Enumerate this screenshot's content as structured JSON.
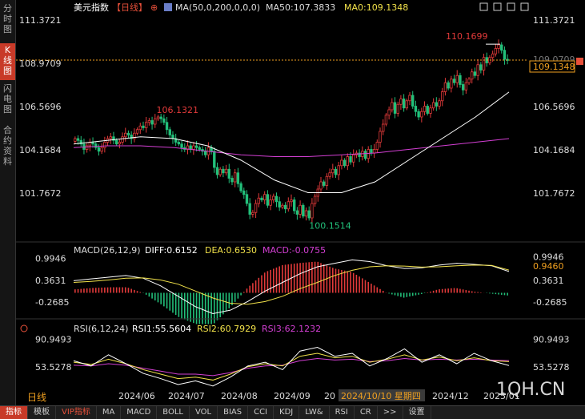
{
  "sidebar": [
    {
      "label": "分时图",
      "active": false
    },
    {
      "label": "K线图",
      "active": true
    },
    {
      "label": "闪电图",
      "active": false
    },
    {
      "label": "合约资料",
      "active": false
    }
  ],
  "header": {
    "title": "美元指数",
    "period": "【日线】",
    "add_symbol": "⊕",
    "ma_label": "MA(50,0,200,0,0,0)",
    "ma50_label": "MA50:107.3833",
    "ma0_label": "MA0:109.1348"
  },
  "window_icons": [
    "minimize-icon",
    "restore-icon",
    "maximize-icon",
    "close-icon"
  ],
  "price_panel": {
    "y_ticks": [
      "111.3721",
      "108.9709",
      "106.5696",
      "104.1684",
      "101.7672"
    ],
    "tick_values": [
      111.3721,
      108.9709,
      106.5696,
      104.1684,
      101.7672
    ],
    "current_price": "109.1348",
    "current_value": 109.1348,
    "right_label_partial": "109.0709",
    "high_label": "110.1699",
    "mid_high_label": "106.1321",
    "low_label": "100.1514",
    "expand_icon": "expand-arrow-icon"
  },
  "macd_panel": {
    "label": "MACD(26,12,9)",
    "diff": "DIFF:0.6152",
    "dea": "DEA:0.6530",
    "macd": "MACD:-0.0755",
    "y_ticks": [
      "0.9946",
      "0.3631",
      "-0.2685"
    ],
    "tick_values": [
      0.9946,
      0.3631,
      -0.2685
    ],
    "current_label": "0.9460"
  },
  "rsi_panel": {
    "label": "RSI(6,12,24)",
    "rsi1": "RSI1:55.5604",
    "rsi2": "RSI2:60.7929",
    "rsi3": "RSI3:62.1232",
    "y_ticks": [
      "90.9493",
      "53.5278"
    ],
    "tick_values": [
      90.9493,
      53.5278
    ],
    "settings_icon": "target-icon"
  },
  "x_axis": {
    "labels": [
      "2024/06",
      "2024/07",
      "2024/08",
      "2024/09",
      "20",
      "2024/12",
      "2025/01"
    ],
    "cursor_date": "2024/10/10 星期四"
  },
  "bottom": {
    "period_label": "日线",
    "watermark": "1QH.CN",
    "tabs": [
      {
        "label": "指标",
        "active": true
      },
      {
        "label": "模板"
      },
      {
        "label": "VIP指标",
        "vip": true
      },
      {
        "label": "MA"
      },
      {
        "label": "MACD"
      },
      {
        "label": "BOLL"
      },
      {
        "label": "VOL"
      },
      {
        "label": "BIAS"
      },
      {
        "label": "CCI"
      },
      {
        "label": "KDJ"
      },
      {
        "label": "LW&"
      },
      {
        "label": "RSI"
      },
      {
        "label": "CR"
      },
      {
        "label": ">>"
      },
      {
        "label": "设置"
      }
    ]
  },
  "colors": {
    "up": "#e23a3a",
    "down": "#22c07a",
    "ma50": "#ffffff",
    "ma200": "#d33fd3",
    "dea": "#f2e24a",
    "rsi3": "#d33fd3",
    "accent": "#c83a28",
    "price_tag": "#f0a020"
  },
  "chart_data": {
    "type": "candlestick",
    "price_range": [
      99.6,
      111.6
    ],
    "anchors": {
      "high": {
        "date": "2025/01",
        "value": 110.1699
      },
      "mid_high": {
        "date": "2024/06",
        "value": 106.1321
      },
      "low": {
        "date": "2024/09",
        "value": 100.1514
      },
      "last_close": 109.1348,
      "ma50": 107.3833
    },
    "closes": [
      104.8,
      104.7,
      104.5,
      104.2,
      104.4,
      104.6,
      104.5,
      104.3,
      104.1,
      104.3,
      104.6,
      104.8,
      104.9,
      104.7,
      104.5,
      104.6,
      104.9,
      105.1,
      105.0,
      104.8,
      105.1,
      105.3,
      105.5,
      105.4,
      105.7,
      105.8,
      105.6,
      105.9,
      106.0,
      105.9,
      105.7,
      105.3,
      105.0,
      104.8,
      104.6,
      104.5,
      104.3,
      104.2,
      104.4,
      104.2,
      104.4,
      104.3,
      104.2,
      104.1,
      103.9,
      104.3,
      104.1,
      103.2,
      102.8,
      103.1,
      102.9,
      103.1,
      102.6,
      102.4,
      102.9,
      102.3,
      101.9,
      101.7,
      101.2,
      100.6,
      100.7,
      101.2,
      101.5,
      101.4,
      101.7,
      101.1,
      101.4,
      101.6,
      101.3,
      101.0,
      101.1,
      100.9,
      101.3,
      101.4,
      100.8,
      100.6,
      101.1,
      100.5,
      100.8,
      100.4,
      101.2,
      101.6,
      102.0,
      102.4,
      102.2,
      102.7,
      102.9,
      103.1,
      102.8,
      103.3,
      103.6,
      103.3,
      103.8,
      103.5,
      103.9,
      104.0,
      103.8,
      104.1,
      103.7,
      104.2,
      104.0,
      104.2,
      104.6,
      105.2,
      105.6,
      106.1,
      106.4,
      106.8,
      106.2,
      106.7,
      107.0,
      106.5,
      106.9,
      107.2,
      106.6,
      106.3,
      106.0,
      106.3,
      106.6,
      106.2,
      106.5,
      106.8,
      106.6,
      106.9,
      107.4,
      107.9,
      107.6,
      108.1,
      107.9,
      108.3,
      107.8,
      107.5,
      107.9,
      108.1,
      108.5,
      108.3,
      108.9,
      108.6,
      109.3,
      109.0,
      109.3,
      109.5,
      109.8,
      110.0,
      109.7,
      109.2,
      109.1348
    ],
    "ma_levels": {
      "ma50": [
        104.5,
        104.7,
        104.9,
        104.8,
        104.4,
        103.6,
        102.5,
        101.8,
        101.8,
        102.4,
        103.6,
        104.8,
        106.0,
        107.3833
      ],
      "ma200": [
        104.3,
        104.4,
        104.4,
        104.3,
        104.1,
        103.9,
        103.8,
        103.8,
        103.9,
        104.0,
        104.2,
        104.4,
        104.6,
        104.8
      ]
    },
    "macd": {
      "diff": [
        0.35,
        0.4,
        0.45,
        0.5,
        0.42,
        0.2,
        -0.1,
        -0.4,
        -0.6,
        -0.5,
        -0.25,
        0.05,
        0.3,
        0.55,
        0.75,
        0.85,
        0.95,
        0.9,
        0.78,
        0.7,
        0.72,
        0.8,
        0.85,
        0.82,
        0.78,
        0.6152
      ],
      "dea": [
        0.3,
        0.33,
        0.37,
        0.42,
        0.43,
        0.37,
        0.25,
        0.05,
        -0.15,
        -0.3,
        -0.33,
        -0.25,
        -0.1,
        0.12,
        0.3,
        0.5,
        0.65,
        0.75,
        0.78,
        0.77,
        0.74,
        0.75,
        0.78,
        0.8,
        0.79,
        0.653
      ],
      "range": [
        -0.45,
        1.05
      ]
    },
    "rsi": {
      "rsi1": [
        62,
        55,
        70,
        58,
        45,
        38,
        30,
        35,
        28,
        40,
        55,
        60,
        50,
        75,
        80,
        68,
        72,
        55,
        65,
        78,
        60,
        70,
        58,
        72,
        62,
        55.5604
      ],
      "rsi2": [
        60,
        57,
        64,
        58,
        50,
        44,
        38,
        40,
        36,
        44,
        54,
        58,
        55,
        68,
        72,
        66,
        68,
        60,
        64,
        70,
        63,
        67,
        62,
        66,
        62,
        60.7929
      ],
      "rsi3": [
        56,
        55,
        58,
        56,
        52,
        48,
        44,
        44,
        42,
        46,
        52,
        55,
        56,
        62,
        65,
        63,
        64,
        61,
        62,
        65,
        63,
        64,
        63,
        64,
        63,
        62.1232
      ],
      "range": [
        30,
        100
      ]
    }
  }
}
